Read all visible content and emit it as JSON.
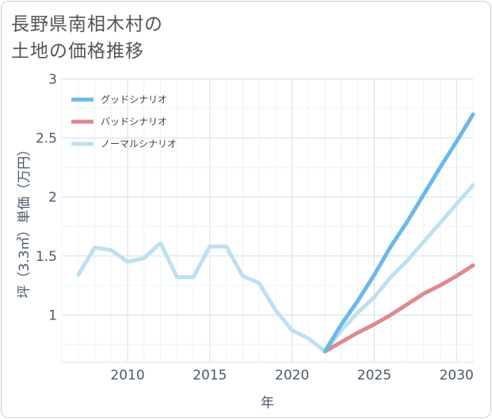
{
  "title": {
    "line1": "長野県南相木村の",
    "line2": "土地の価格推移"
  },
  "chart_data": {
    "type": "line",
    "xlabel": "年",
    "ylabel": "坪（3.3㎡）単価（万円）",
    "xlim": [
      2006,
      2031
    ],
    "ylim": [
      0.6,
      3.0
    ],
    "xticks": [
      2010,
      2015,
      2020,
      2025,
      2030
    ],
    "yticks": [
      1,
      1.5,
      2,
      2.5,
      3
    ],
    "ytick_labels": [
      "1",
      "1.5",
      "2",
      "2.5",
      "3"
    ],
    "grid": true,
    "legend_position": "top-left",
    "series": [
      {
        "name": "グッドシナリオ",
        "color": "#6cb8ea",
        "x": [
          2022,
          2023,
          2024,
          2025,
          2026,
          2027,
          2028,
          2029,
          2030,
          2031
        ],
        "y": [
          0.69,
          0.92,
          1.12,
          1.34,
          1.58,
          1.79,
          2.02,
          2.25,
          2.47,
          2.7
        ]
      },
      {
        "name": "バッドシナリオ",
        "color": "#de8a8e",
        "x": [
          2022,
          2023,
          2024,
          2025,
          2026,
          2027,
          2028,
          2029,
          2030,
          2031
        ],
        "y": [
          0.69,
          0.77,
          0.85,
          0.92,
          1.0,
          1.09,
          1.18,
          1.25,
          1.33,
          1.42
        ]
      },
      {
        "name": "ノーマルシナリオ",
        "color": "#bfe0ee",
        "x": [
          2007,
          2008,
          2009,
          2010,
          2011,
          2012,
          2013,
          2014,
          2015,
          2016,
          2017,
          2018,
          2019,
          2020,
          2021,
          2022,
          2023,
          2024,
          2025,
          2026,
          2027,
          2028,
          2029,
          2030,
          2031
        ],
        "y": [
          1.34,
          1.57,
          1.55,
          1.45,
          1.48,
          1.61,
          1.32,
          1.32,
          1.58,
          1.58,
          1.33,
          1.27,
          1.04,
          0.87,
          0.8,
          0.69,
          0.87,
          1.02,
          1.15,
          1.32,
          1.46,
          1.62,
          1.78,
          1.94,
          2.1
        ]
      }
    ]
  }
}
